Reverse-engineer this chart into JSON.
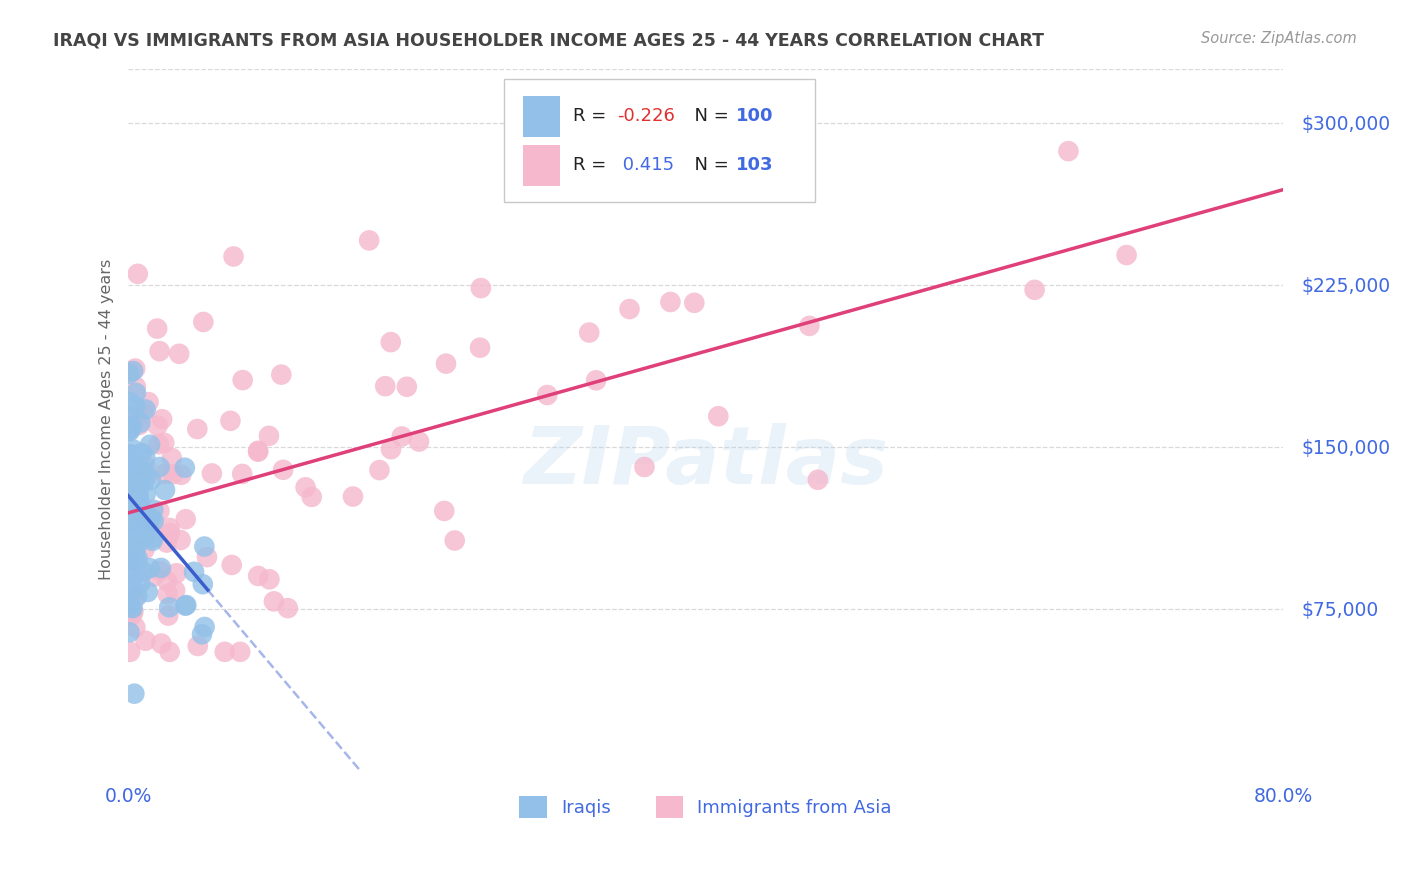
{
  "title": "IRAQI VS IMMIGRANTS FROM ASIA HOUSEHOLDER INCOME AGES 25 - 44 YEARS CORRELATION CHART",
  "source": "Source: ZipAtlas.com",
  "ylabel": "Householder Income Ages 25 - 44 years",
  "xlim": [
    0.0,
    0.8
  ],
  "ylim": [
    0,
    325000
  ],
  "yticks": [
    75000,
    150000,
    225000,
    300000
  ],
  "ytick_labels": [
    "$75,000",
    "$150,000",
    "$225,000",
    "$300,000"
  ],
  "xticks": [
    0.0,
    0.1,
    0.2,
    0.3,
    0.4,
    0.5,
    0.6,
    0.7,
    0.8
  ],
  "xtick_labels": [
    "0.0%",
    "",
    "",
    "",
    "",
    "",
    "",
    "",
    "80.0%"
  ],
  "background_color": "#ffffff",
  "watermark": "ZIPatlas",
  "iraqi_color": "#92c0e8",
  "asia_color": "#f5b8cc",
  "iraqi_line_color": "#3a5fcd",
  "asia_line_color": "#e0407a",
  "title_color": "#444444",
  "axis_label_color": "#666666",
  "tick_color": "#4169e1",
  "grid_color": "#d0d0d0",
  "legend_text_color": "#333333",
  "legend_R1": "-0.226",
  "legend_N1": "100",
  "legend_R2": "0.415",
  "legend_N2": "103"
}
